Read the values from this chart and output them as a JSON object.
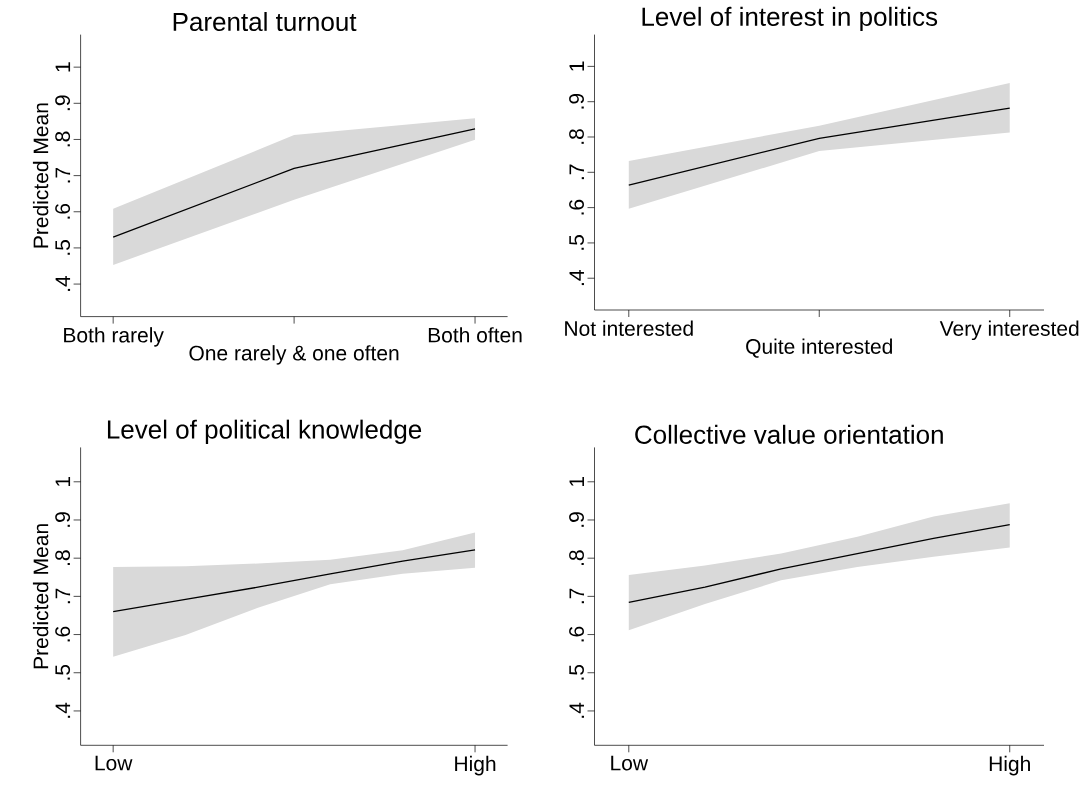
{
  "chart_data": [
    {
      "type": "line",
      "title": "Parental turnout",
      "ylabel": "Predicted Mean",
      "categories": [
        "Both rarely",
        "One rarely & one often",
        "Both often"
      ],
      "ylim": [
        0.31,
        1.09
      ],
      "yticks": [
        {
          "value": 0.4,
          "label": ".4"
        },
        {
          "value": 0.5,
          "label": ".5"
        },
        {
          "value": 0.6,
          "label": ".6"
        },
        {
          "value": 0.7,
          "label": ".7"
        },
        {
          "value": 0.8,
          "label": ".8"
        },
        {
          "value": 0.9,
          "label": ".9"
        },
        1
      ],
      "series": [
        {
          "color": "#000000",
          "values": [
            0.53,
            0.72,
            0.829
          ],
          "lower": [
            0.453,
            0.633,
            0.799
          ],
          "upper": [
            0.608,
            0.812,
            0.859
          ]
        }
      ]
    },
    {
      "type": "line",
      "title": "Level of interest in politics",
      "categories": [
        "Not interested",
        "Quite interested",
        "Very interested"
      ],
      "ylim": [
        0.31,
        1.09
      ],
      "yticks": [
        {
          "value": 0.4,
          "label": ".4"
        },
        {
          "value": 0.5,
          "label": ".5"
        },
        {
          "value": 0.6,
          "label": ".6"
        },
        {
          "value": 0.7,
          "label": ".7"
        },
        {
          "value": 0.8,
          "label": ".8"
        },
        {
          "value": 0.9,
          "label": ".9"
        },
        1
      ],
      "series": [
        {
          "color": "#000000",
          "values": [
            0.664,
            0.796,
            0.882
          ],
          "lower": [
            0.597,
            0.76,
            0.813
          ],
          "upper": [
            0.732,
            0.832,
            0.953
          ]
        }
      ]
    },
    {
      "type": "line",
      "title": "Level of political knowledge",
      "ylabel": "Predicted Mean",
      "categories": [
        "Low",
        null,
        null,
        null,
        null,
        "High"
      ],
      "ylim": [
        0.31,
        1.09
      ],
      "yticks": [
        {
          "value": 0.4,
          "label": ".4"
        },
        {
          "value": 0.5,
          "label": ".5"
        },
        {
          "value": 0.6,
          "label": ".6"
        },
        {
          "value": 0.7,
          "label": ".7"
        },
        {
          "value": 0.8,
          "label": ".8"
        },
        {
          "value": 0.9,
          "label": ".9"
        },
        1
      ],
      "series": [
        {
          "color": "#000000",
          "values": [
            0.66,
            0.692,
            0.724,
            0.759,
            0.792,
            0.822
          ],
          "lower": [
            0.542,
            0.599,
            0.67,
            0.732,
            0.759,
            0.775
          ],
          "upper": [
            0.777,
            0.779,
            0.786,
            0.796,
            0.821,
            0.867
          ]
        }
      ]
    },
    {
      "type": "line",
      "title": "Collective value orientation",
      "categories": [
        "Low",
        null,
        null,
        null,
        null,
        "High"
      ],
      "ylim": [
        0.31,
        1.09
      ],
      "yticks": [
        {
          "value": 0.4,
          "label": ".4"
        },
        {
          "value": 0.5,
          "label": ".5"
        },
        {
          "value": 0.6,
          "label": ".6"
        },
        {
          "value": 0.7,
          "label": ".7"
        },
        {
          "value": 0.8,
          "label": ".8"
        },
        {
          "value": 0.9,
          "label": ".9"
        },
        1
      ],
      "series": [
        {
          "color": "#000000",
          "values": [
            0.684,
            0.724,
            0.772,
            0.812,
            0.852,
            0.888
          ],
          "lower": [
            0.611,
            0.68,
            0.742,
            0.777,
            0.804,
            0.828
          ],
          "upper": [
            0.756,
            0.781,
            0.812,
            0.856,
            0.909,
            0.944
          ]
        }
      ]
    }
  ]
}
